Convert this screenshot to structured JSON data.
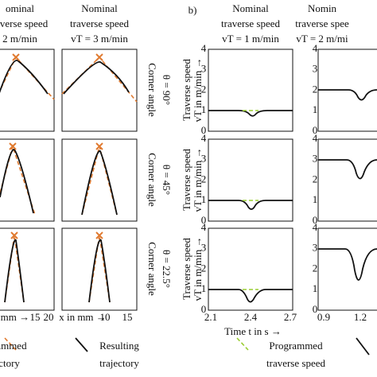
{
  "panel_a": {
    "col_headers": [
      [
        "ominal",
        "raverse speed",
        "2 m/min"
      ],
      [
        "Nominal",
        "traverse speed",
        "vT = 3 m/min"
      ]
    ],
    "row_labels": [
      [
        "Corner angle",
        "θ = 90°"
      ],
      [
        "Corner angle",
        "θ = 45°"
      ],
      [
        "Corner angle",
        "θ = 22.5°"
      ]
    ],
    "x_ticks": [
      [
        "n mm →",
        "15",
        "20"
      ],
      [
        "x in mm →",
        "10",
        "15"
      ]
    ],
    "legend": [
      [
        "Programmed",
        "trajectory"
      ],
      [
        "Resulting",
        "trajectory"
      ]
    ]
  },
  "panel_b": {
    "label": "b)",
    "col_headers": [
      [
        "Nominal",
        "traverse speed",
        "vT = 1 m/min"
      ],
      [
        "Nomin",
        "traverse spee",
        "vT = 2 m/mi"
      ]
    ],
    "y_label": [
      "Traverse speed",
      "vT in m/min →"
    ],
    "y_ticks": [
      "0",
      "1",
      "2",
      "3",
      "4"
    ],
    "x_ticks": [
      [
        "2.1",
        "2.4",
        "2.7"
      ],
      [
        "0.9",
        "1.2"
      ]
    ],
    "x_label": "Time t in s →",
    "legend": [
      "Programmed",
      "traverse speed"
    ]
  }
}
